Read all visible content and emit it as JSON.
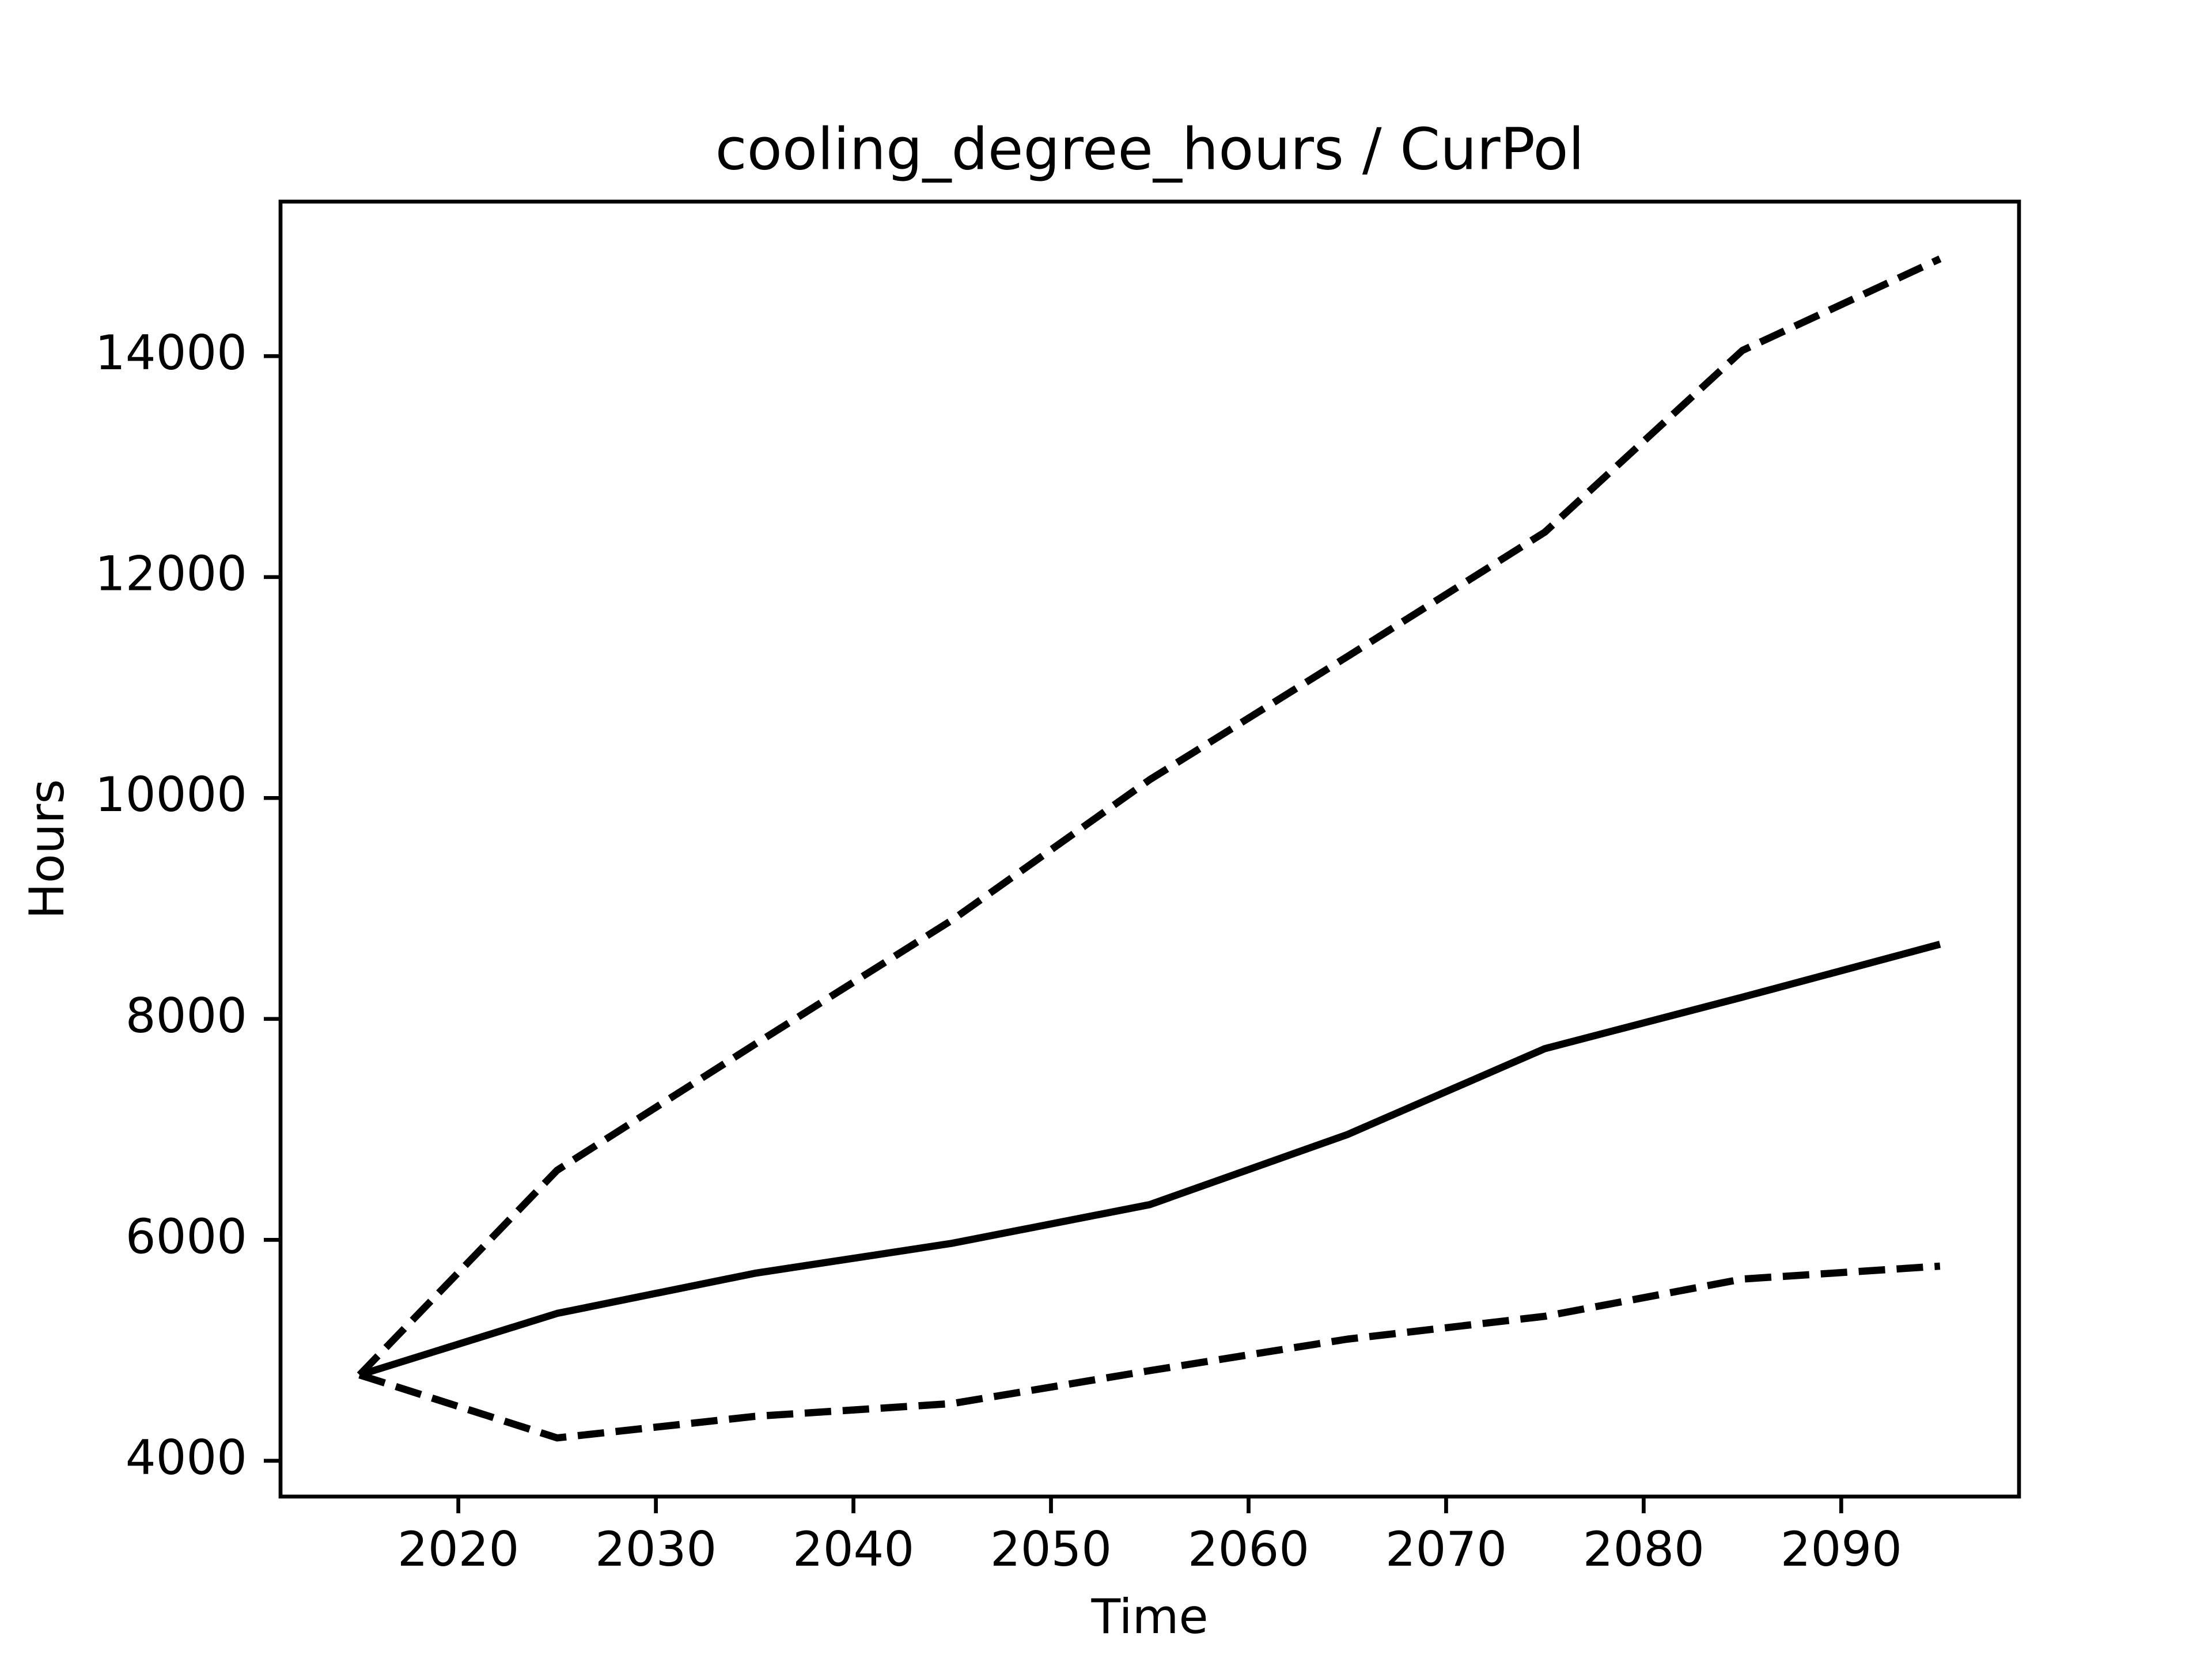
{
  "chart_data": {
    "type": "line",
    "title": "cooling_degree_hours / CurPol",
    "xlabel": "Time",
    "ylabel": "Hours",
    "x": [
      2015,
      2025,
      2035,
      2045,
      2055,
      2065,
      2075,
      2085,
      2095
    ],
    "series": [
      {
        "color": "#000000",
        "dash": false,
        "values": [
          4777,
          5334,
          5697,
          5969,
          6319,
          6953,
          7731,
          8197,
          8676
        ]
      },
      {
        "color": "#000000",
        "dash": true,
        "values": [
          4777,
          6630,
          7769,
          8896,
          10166,
          11280,
          12407,
          14052,
          14881
        ]
      },
      {
        "color": "#000000",
        "dash": true,
        "values": [
          4777,
          4207,
          4402,
          4518,
          4816,
          5101,
          5308,
          5645,
          5762
        ]
      }
    ],
    "xlim": [
      2011,
      2099
    ],
    "xticks": [
      2020,
      2030,
      2040,
      2050,
      2060,
      2070,
      2080,
      2090
    ],
    "ylim": [
      3676,
      15399
    ],
    "yticks": [
      4000,
      6000,
      8000,
      10000,
      12000,
      14000
    ],
    "grid": false
  }
}
